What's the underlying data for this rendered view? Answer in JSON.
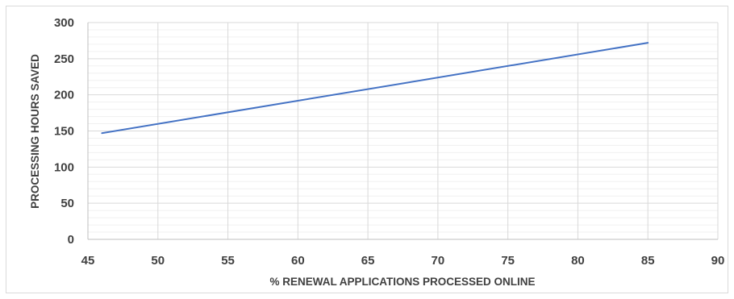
{
  "chart_data": {
    "type": "line",
    "title": "",
    "xlabel": "% RENEWAL APPLICATIONS PROCESSED ONLINE",
    "ylabel": "PROCESSING HOURS SAVED",
    "xlim": [
      45,
      90
    ],
    "ylim": [
      0,
      300
    ],
    "x_ticks": [
      45,
      50,
      55,
      60,
      65,
      70,
      75,
      80,
      85,
      90
    ],
    "y_ticks": [
      0,
      50,
      100,
      150,
      200,
      250,
      300
    ],
    "y_minor_step": 10,
    "grid": true,
    "legend": "none",
    "series": [
      {
        "x": [
          46,
          85
        ],
        "y": [
          147,
          272
        ],
        "color": "#4472c4"
      }
    ],
    "colors": {
      "line": "#4472c4",
      "grid_major": "#d9d9d9",
      "grid_minor": "#f0f0f0",
      "text": "#404040"
    }
  }
}
